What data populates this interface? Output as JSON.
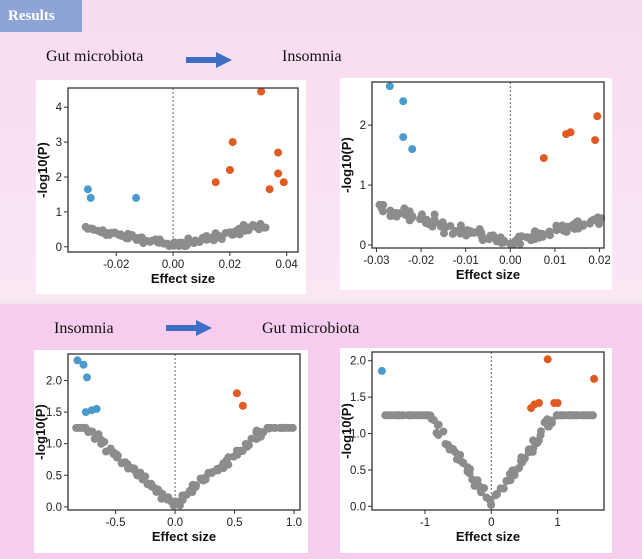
{
  "badge": "Results",
  "rows": [
    {
      "exposure": "Gut microbiota",
      "outcome": "Insomnia"
    },
    {
      "exposure": "Insomnia",
      "outcome": "Gut microbiota"
    }
  ],
  "colors": {
    "grey": "#8c8c8c",
    "blue": "#4a9acb",
    "orange": "#e05a22"
  },
  "chart_data": [
    {
      "type": "scatter",
      "xlabel": "Effect size",
      "ylabel": "-log10(P)",
      "xlim": [
        -0.037,
        0.044
      ],
      "ylim": [
        -0.15,
        4.55
      ],
      "xticks": [
        -0.02,
        0.0,
        0.02,
        0.04
      ],
      "xtick_labels": [
        "-0.02",
        "0.00",
        "0.02",
        "0.04"
      ],
      "yticks": [
        0,
        1,
        2,
        3,
        4
      ],
      "ytick_labels": [
        "0",
        "1",
        "2",
        "3",
        "4"
      ],
      "series": [
        {
          "name": "positive",
          "color": "#e05a22",
          "points": [
            [
              0.031,
              4.45
            ],
            [
              0.021,
              3.0
            ],
            [
              0.015,
              1.85
            ],
            [
              0.02,
              2.2
            ],
            [
              0.037,
              2.7
            ],
            [
              0.037,
              2.1
            ],
            [
              0.039,
              1.85
            ],
            [
              0.034,
              1.65
            ]
          ]
        },
        {
          "name": "negative",
          "color": "#4a9acb",
          "points": [
            [
              -0.03,
              1.65
            ],
            [
              -0.029,
              1.4
            ],
            [
              -0.013,
              1.4
            ]
          ]
        }
      ]
    },
    {
      "type": "scatter",
      "xlabel": "Effect size",
      "ylabel": "-log10(P)",
      "xlim": [
        -0.031,
        0.021
      ],
      "ylim": [
        -0.05,
        2.72
      ],
      "xticks": [
        -0.03,
        -0.02,
        -0.01,
        0.0,
        0.01,
        0.02
      ],
      "xtick_labels": [
        "-0.03",
        "-0.02",
        "-0.01",
        "0.00",
        "0.01",
        "0.02"
      ],
      "yticks": [
        0,
        1,
        2
      ],
      "ytick_labels": [
        "0",
        "1",
        "2"
      ],
      "series": [
        {
          "name": "positive",
          "color": "#e05a22",
          "points": [
            [
              0.0195,
              2.15
            ],
            [
              0.0125,
              1.85
            ],
            [
              0.0135,
              1.88
            ],
            [
              0.019,
              1.75
            ],
            [
              0.0075,
              1.45
            ]
          ]
        },
        {
          "name": "negative",
          "color": "#4a9acb",
          "points": [
            [
              -0.027,
              2.65
            ],
            [
              -0.024,
              2.4
            ],
            [
              -0.024,
              1.8
            ],
            [
              -0.022,
              1.6
            ]
          ]
        }
      ]
    },
    {
      "type": "scatter",
      "xlabel": "Effect size",
      "ylabel": "-log10(P)",
      "xlim": [
        -0.9,
        1.05
      ],
      "ylim": [
        -0.05,
        2.42
      ],
      "xticks": [
        -0.5,
        0.0,
        0.5,
        1.0
      ],
      "xtick_labels": [
        "-0.5",
        "0.0",
        "0.5",
        "1.0"
      ],
      "yticks": [
        0.0,
        0.5,
        1.0,
        1.5,
        2.0
      ],
      "ytick_labels": [
        "0.0",
        "0.5",
        "1.0",
        "1.5",
        "2.0"
      ],
      "series": [
        {
          "name": "positive",
          "color": "#e05a22",
          "points": [
            [
              0.52,
              1.8
            ],
            [
              0.57,
              1.6
            ]
          ]
        },
        {
          "name": "negative",
          "color": "#4a9acb",
          "points": [
            [
              -0.82,
              2.32
            ],
            [
              -0.77,
              2.25
            ],
            [
              -0.74,
              2.05
            ],
            [
              -0.75,
              1.5
            ],
            [
              -0.7,
              1.53
            ],
            [
              -0.66,
              1.55
            ]
          ]
        }
      ]
    },
    {
      "type": "scatter",
      "xlabel": "Effect size",
      "ylabel": "-log10(P)",
      "xlim": [
        -1.8,
        1.7
      ],
      "ylim": [
        -0.05,
        2.12
      ],
      "xticks": [
        -1,
        0,
        1
      ],
      "xtick_labels": [
        "-1",
        "0",
        "1"
      ],
      "yticks": [
        0.0,
        0.5,
        1.0,
        1.5,
        2.0
      ],
      "ytick_labels": [
        "0.0",
        "0.5",
        "1.0",
        "1.5",
        "2.0"
      ],
      "series": [
        {
          "name": "positive",
          "color": "#e05a22",
          "points": [
            [
              0.85,
              2.02
            ],
            [
              1.55,
              1.75
            ],
            [
              0.6,
              1.35
            ],
            [
              0.65,
              1.4
            ],
            [
              0.72,
              1.42
            ],
            [
              0.95,
              1.42
            ],
            [
              1.0,
              1.42
            ]
          ]
        },
        {
          "name": "negative",
          "color": "#4a9acb",
          "points": [
            [
              -1.65,
              1.86
            ]
          ]
        }
      ]
    }
  ]
}
